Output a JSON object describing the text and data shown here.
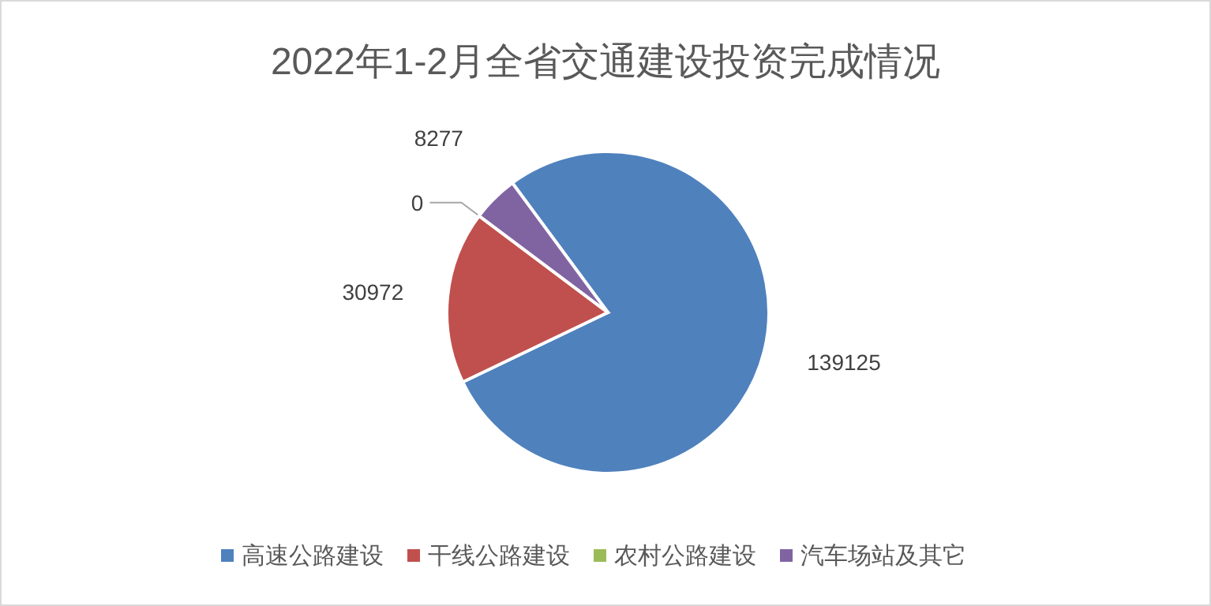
{
  "chart_data": {
    "type": "pie",
    "title": "2022年1-2月全省交通建设投资完成情况",
    "categories": [
      "高速公路建设",
      "干线公路建设",
      "农村公路建设",
      "汽车场站及其它"
    ],
    "values": [
      139125,
      30972,
      0,
      8277
    ],
    "colors": [
      "#4f81bd",
      "#c0504d",
      "#9bbb59",
      "#8064a2"
    ],
    "value_labels": [
      "139125",
      "30972",
      "0",
      "8277"
    ],
    "legend": "bottom"
  }
}
